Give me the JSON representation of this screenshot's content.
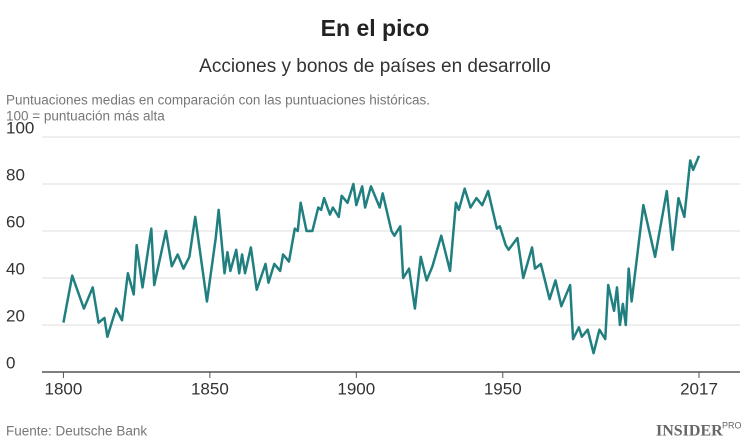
{
  "chart_data": {
    "type": "line",
    "title": "En el pico",
    "subtitle": "Acciones y bonos de países en desarrollo",
    "note": [
      "Puntuaciones medias en comparación con las puntuaciones históricas.",
      "100 = puntuación más alta"
    ],
    "source": "Fuente: Deutsche Bank",
    "logo": "INSIDER",
    "logo_sup": "PRO",
    "x": [
      1800,
      1803,
      1807,
      1810,
      1812,
      1814,
      1815,
      1818,
      1820,
      1822,
      1824,
      1825,
      1827,
      1830,
      1831,
      1835,
      1837,
      1839,
      1841,
      1843,
      1845,
      1849,
      1852,
      1853,
      1855,
      1856,
      1857,
      1859,
      1860,
      1861,
      1862,
      1864,
      1866,
      1869,
      1870,
      1872,
      1874,
      1875,
      1877,
      1879,
      1880,
      1881,
      1883,
      1885,
      1887,
      1888,
      1889,
      1891,
      1892,
      1894,
      1895,
      1897,
      1899,
      1900,
      1902,
      1903,
      1905,
      1908,
      1909,
      1912,
      1913,
      1915,
      1916,
      1918,
      1920,
      1922,
      1924,
      1926,
      1929,
      1932,
      1934,
      1935,
      1937,
      1939,
      1941,
      1943,
      1945,
      1948,
      1949,
      1951,
      1952,
      1955,
      1957,
      1960,
      1961,
      1963,
      1966,
      1968,
      1970,
      1973,
      1974,
      1976,
      1977,
      1979,
      1981,
      1983,
      1985,
      1986,
      1988,
      1989,
      1990,
      1991,
      1992,
      1993,
      1994,
      1998,
      2002,
      2006,
      2008,
      2010,
      2012,
      2014,
      2015,
      2017
    ],
    "series": [
      {
        "name": "Puntuación",
        "color": "#217f80",
        "values": [
          21,
          41,
          27,
          36,
          21,
          23,
          15,
          27,
          22,
          42,
          33,
          54,
          36,
          61,
          37,
          60,
          45,
          50,
          44,
          49,
          66,
          30,
          57,
          69,
          42,
          51,
          43,
          52,
          42,
          50,
          42,
          53,
          35,
          46,
          38,
          46,
          43,
          50,
          47,
          61,
          60,
          72,
          60,
          60,
          70,
          69,
          74,
          67,
          70,
          66,
          75,
          72,
          80,
          71,
          79,
          70,
          79,
          70,
          76,
          60,
          58,
          62,
          40,
          44,
          27,
          49,
          39,
          45,
          58,
          43,
          72,
          69,
          78,
          70,
          74,
          71,
          77,
          61,
          62,
          54,
          52,
          57,
          40,
          53,
          44,
          46,
          31,
          39,
          28,
          37,
          14,
          19,
          15,
          18,
          8,
          18,
          14,
          37,
          26,
          36,
          20,
          29,
          20,
          44,
          30,
          71,
          49,
          77,
          52,
          74,
          66,
          90,
          86,
          92
        ]
      }
    ],
    "xlim": [
      1792,
      2031
    ],
    "xticks": [
      1800,
      1850,
      1900,
      1950,
      2017
    ],
    "ylim": [
      0,
      100
    ],
    "yticks": [
      0,
      20,
      40,
      60,
      80,
      100
    ],
    "grid": true
  }
}
